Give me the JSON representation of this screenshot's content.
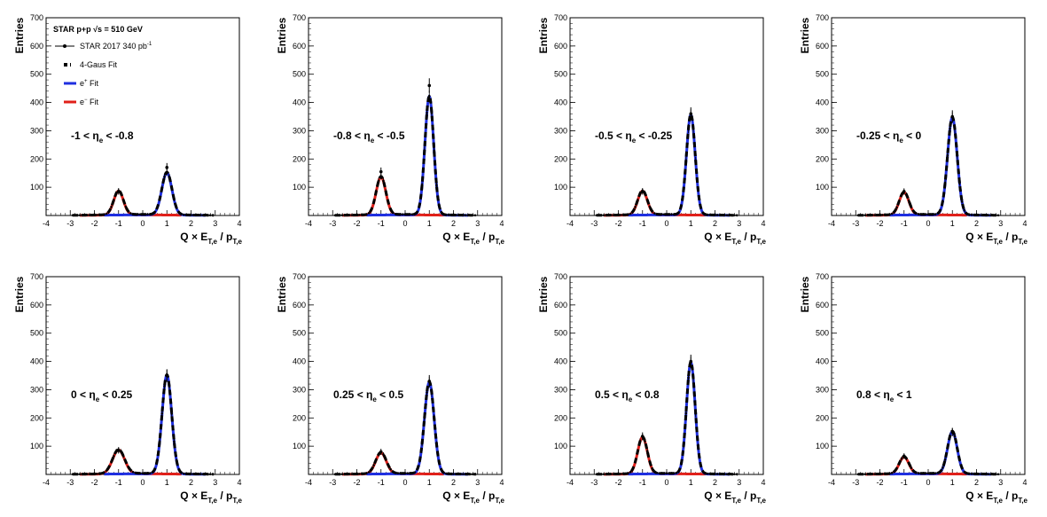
{
  "figure": {
    "experiment": "STAR p+p",
    "sqrt_symbol": "√s",
    "energy": "= 510 GeV",
    "legend": {
      "data": {
        "text": "STAR 2017 340 pb",
        "sup": "-1"
      },
      "gaus": {
        "text": "4-Gaus Fit"
      },
      "pos": {
        "base": "e",
        "sup": "+",
        "rest": " Fit"
      },
      "neg": {
        "base": "e",
        "sup": "−",
        "rest": " Fit"
      }
    }
  },
  "colors": {
    "data": "#000000",
    "fit": "#000000",
    "positive": "#1f2fe0",
    "negative": "#e0201a"
  },
  "chart_data": [
    {
      "type": "line",
      "panel_label": {
        "pre": "-1 < η",
        "sub": "e",
        "post": " < -0.8"
      },
      "xlabel": {
        "main": "Q × E",
        "sub1": "T,e",
        "mid": " / p",
        "sub2": "T,e"
      },
      "ylabel": "Entries",
      "xlim": [
        -4,
        4
      ],
      "ylim": [
        0,
        700
      ],
      "xticks": [
        -4,
        -3,
        -2,
        -1,
        0,
        1,
        2,
        3,
        4
      ],
      "yticks": [
        100,
        200,
        300,
        400,
        500,
        600,
        700
      ],
      "series": [
        {
          "charge": "negative",
          "amplitude": 85,
          "mean": -1.0,
          "sigma": 0.2
        },
        {
          "charge": "positive",
          "amplitude": 150,
          "mean": 1.0,
          "sigma": 0.21
        }
      ],
      "points": [
        {
          "x": -1.0,
          "y": 85
        },
        {
          "x": 1.0,
          "y": 170
        }
      ]
    },
    {
      "type": "line",
      "panel_label": {
        "pre": "-0.8 < η",
        "sub": "e",
        "post": " < -0.5"
      },
      "xlabel": {
        "main": "Q × E",
        "sub1": "T,e",
        "mid": " / p",
        "sub2": "T,e"
      },
      "ylabel": "Entries",
      "xlim": [
        -4,
        4
      ],
      "ylim": [
        0,
        700
      ],
      "xticks": [
        -4,
        -3,
        -2,
        -1,
        0,
        1,
        2,
        3,
        4
      ],
      "yticks": [
        100,
        200,
        300,
        400,
        500,
        600,
        700
      ],
      "series": [
        {
          "charge": "negative",
          "amplitude": 135,
          "mean": -1.0,
          "sigma": 0.2
        },
        {
          "charge": "positive",
          "amplitude": 420,
          "mean": 1.0,
          "sigma": 0.18
        }
      ],
      "points": [
        {
          "x": -1.0,
          "y": 155
        },
        {
          "x": 1.0,
          "y": 460
        }
      ]
    },
    {
      "type": "line",
      "panel_label": {
        "pre": "-0.5 < η",
        "sub": "e",
        "post": " < -0.25"
      },
      "xlabel": {
        "main": "Q × E",
        "sub1": "T,e",
        "mid": " / p",
        "sub2": "T,e"
      },
      "ylabel": "Entries",
      "xlim": [
        -4,
        4
      ],
      "ylim": [
        0,
        700
      ],
      "xticks": [
        -4,
        -3,
        -2,
        -1,
        0,
        1,
        2,
        3,
        4
      ],
      "yticks": [
        100,
        200,
        300,
        400,
        500,
        600,
        700
      ],
      "series": [
        {
          "charge": "negative",
          "amplitude": 85,
          "mean": -1.0,
          "sigma": 0.2
        },
        {
          "charge": "positive",
          "amplitude": 355,
          "mean": 1.0,
          "sigma": 0.18
        }
      ],
      "points": [
        {
          "x": -1.0,
          "y": 85
        },
        {
          "x": 1.0,
          "y": 360
        }
      ]
    },
    {
      "type": "line",
      "panel_label": {
        "pre": "-0.25 < η",
        "sub": "e",
        "post": " < 0"
      },
      "xlabel": {
        "main": "Q × E",
        "sub1": "T,e",
        "mid": " / p",
        "sub2": "T,e"
      },
      "ylabel": "Entries",
      "xlim": [
        -4,
        4
      ],
      "ylim": [
        0,
        700
      ],
      "xticks": [
        -4,
        -3,
        -2,
        -1,
        0,
        1,
        2,
        3,
        4
      ],
      "yticks": [
        100,
        200,
        300,
        400,
        500,
        600,
        700
      ],
      "series": [
        {
          "charge": "negative",
          "amplitude": 80,
          "mean": -1.0,
          "sigma": 0.2
        },
        {
          "charge": "positive",
          "amplitude": 345,
          "mean": 1.0,
          "sigma": 0.2
        }
      ],
      "points": [
        {
          "x": -1.0,
          "y": 85
        },
        {
          "x": 1.0,
          "y": 350
        }
      ]
    },
    {
      "type": "line",
      "panel_label": {
        "pre": "0 < η",
        "sub": "e",
        "post": " < 0.25"
      },
      "xlabel": {
        "main": "Q × E",
        "sub1": "T,e",
        "mid": " / p",
        "sub2": "T,e"
      },
      "ylabel": "Entries",
      "xlim": [
        -4,
        4
      ],
      "ylim": [
        0,
        700
      ],
      "xticks": [
        -4,
        -3,
        -2,
        -1,
        0,
        1,
        2,
        3,
        4
      ],
      "yticks": [
        100,
        200,
        300,
        400,
        500,
        600,
        700
      ],
      "series": [
        {
          "charge": "negative",
          "amplitude": 85,
          "mean": -1.0,
          "sigma": 0.25
        },
        {
          "charge": "positive",
          "amplitude": 350,
          "mean": 1.0,
          "sigma": 0.2
        }
      ],
      "points": [
        {
          "x": -1.0,
          "y": 85
        },
        {
          "x": 1.0,
          "y": 350
        }
      ]
    },
    {
      "type": "line",
      "panel_label": {
        "pre": "0.25 < η",
        "sub": "e",
        "post": " < 0.5"
      },
      "xlabel": {
        "main": "Q × E",
        "sub1": "T,e",
        "mid": " / p",
        "sub2": "T,e"
      },
      "ylabel": "Entries",
      "xlim": [
        -4,
        4
      ],
      "ylim": [
        0,
        700
      ],
      "xticks": [
        -4,
        -3,
        -2,
        -1,
        0,
        1,
        2,
        3,
        4
      ],
      "yticks": [
        100,
        200,
        300,
        400,
        500,
        600,
        700
      ],
      "series": [
        {
          "charge": "negative",
          "amplitude": 75,
          "mean": -1.0,
          "sigma": 0.22
        },
        {
          "charge": "positive",
          "amplitude": 325,
          "mean": 1.0,
          "sigma": 0.2
        }
      ],
      "points": [
        {
          "x": -1.0,
          "y": 80
        },
        {
          "x": 1.0,
          "y": 330
        }
      ]
    },
    {
      "type": "line",
      "panel_label": {
        "pre": "0.5 < η",
        "sub": "e",
        "post": " < 0.8"
      },
      "xlabel": {
        "main": "Q × E",
        "sub1": "T,e",
        "mid": " / p",
        "sub2": "T,e"
      },
      "ylabel": "Entries",
      "xlim": [
        -4,
        4
      ],
      "ylim": [
        0,
        700
      ],
      "xticks": [
        -4,
        -3,
        -2,
        -1,
        0,
        1,
        2,
        3,
        4
      ],
      "yticks": [
        100,
        200,
        300,
        400,
        500,
        600,
        700
      ],
      "series": [
        {
          "charge": "negative",
          "amplitude": 130,
          "mean": -1.0,
          "sigma": 0.2
        },
        {
          "charge": "positive",
          "amplitude": 395,
          "mean": 1.0,
          "sigma": 0.18
        }
      ],
      "points": [
        {
          "x": -1.0,
          "y": 135
        },
        {
          "x": 1.0,
          "y": 400
        }
      ]
    },
    {
      "type": "line",
      "panel_label": {
        "pre": "0.8 < η",
        "sub": "e",
        "post": " < 1"
      },
      "xlabel": {
        "main": "Q × E",
        "sub1": "T,e",
        "mid": " / p",
        "sub2": "T,e"
      },
      "ylabel": "Entries",
      "xlim": [
        -4,
        4
      ],
      "ylim": [
        0,
        700
      ],
      "xticks": [
        -4,
        -3,
        -2,
        -1,
        0,
        1,
        2,
        3,
        4
      ],
      "yticks": [
        100,
        200,
        300,
        400,
        500,
        600,
        700
      ],
      "series": [
        {
          "charge": "negative",
          "amplitude": 60,
          "mean": -1.0,
          "sigma": 0.2
        },
        {
          "charge": "positive",
          "amplitude": 150,
          "mean": 1.0,
          "sigma": 0.2
        }
      ],
      "points": [
        {
          "x": -1.0,
          "y": 65
        },
        {
          "x": 1.0,
          "y": 150
        }
      ]
    }
  ]
}
